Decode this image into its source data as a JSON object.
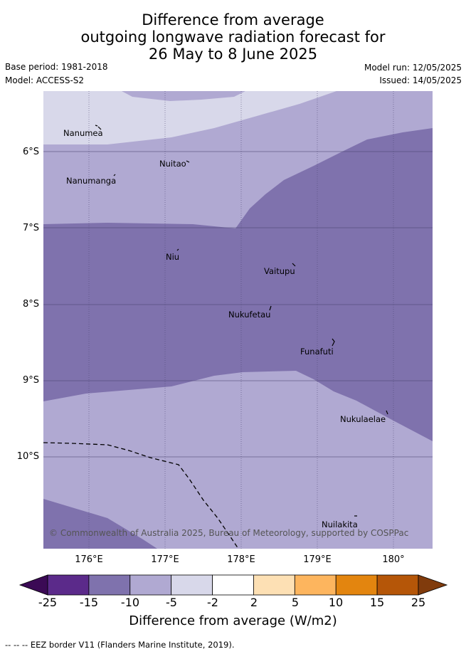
{
  "title": {
    "line1": "Difference from average",
    "line2": "outgoing longwave radiation forecast for",
    "line3": "26 May to 8 June 2025"
  },
  "info": {
    "base_period": "Base period: 1981-2018",
    "model": "Model: ACCESS-S2",
    "model_run": "Model run: 12/05/2025",
    "issued": "Issued: 14/05/2025"
  },
  "map": {
    "lat_labels": [
      "6°S",
      "7°S",
      "8°S",
      "9°S",
      "10°S"
    ],
    "lon_labels": [
      "176°E",
      "177°E",
      "178°E",
      "179°E",
      "180°"
    ],
    "places": [
      "Nanumea",
      "Nuitao",
      "Nanumanga",
      "Niu",
      "Vaitupu",
      "Nukufetau",
      "Funafuti",
      "Nukulaelae",
      "Nuilakita"
    ],
    "copyright": "© Commonwealth of Australia 2025, Bureau of Meteorology, supported by COSPPac"
  },
  "colorbar": {
    "ticks": [
      "-25",
      "-15",
      "-10",
      "-5",
      "-2",
      "2",
      "5",
      "10",
      "15",
      "25"
    ],
    "colors": [
      "#5b2a8a",
      "#7f72ad",
      "#b0a9d2",
      "#d8d8ea",
      "#ffffff",
      "#fde0b4",
      "#fdb55e",
      "#e3850f",
      "#b55608"
    ],
    "extend_low_color": "#3b0a55",
    "extend_high_color": "#803b0c",
    "title": "Difference from average (W/m2)"
  },
  "footer": "-- -- -- EEZ border V11 (Flanders Marine Institute, 2019)."
}
